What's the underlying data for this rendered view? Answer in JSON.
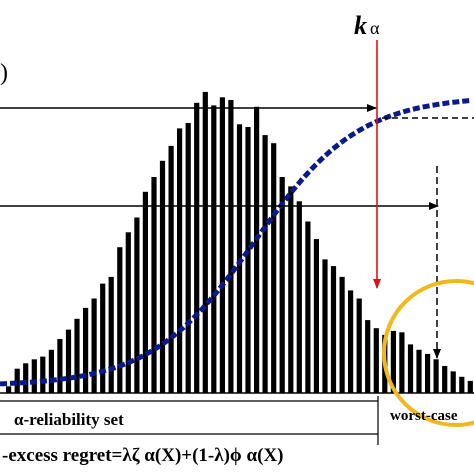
{
  "chart_data": {
    "type": "bar",
    "title": "",
    "xlabel": "",
    "ylabel": "",
    "marker_label_main": "k",
    "marker_label_sub": "α",
    "left_axis_fragment": ")",
    "bottom_labels": {
      "reliability_set": "α-reliability set",
      "worst_case": "worst-case",
      "formula": "-excess regret=λζ α(X)+(1-λ)ϕ α(X)"
    },
    "histogram_values": [
      5,
      18,
      22,
      25,
      27,
      32,
      40,
      47,
      55,
      63,
      70,
      81,
      86,
      108,
      119,
      130,
      149,
      160,
      172,
      183,
      196,
      200,
      215,
      223,
      213,
      219,
      217,
      199,
      197,
      212,
      191,
      185,
      160,
      153,
      142,
      127,
      114,
      99,
      94,
      86,
      76,
      70,
      54,
      48,
      43,
      46,
      45,
      36,
      32,
      29,
      25,
      20,
      16,
      12,
      9
    ],
    "histogram_highlighted_from_index": 47,
    "cdf_curve": "dashed, dark blue, increasing",
    "colors": {
      "bars": "#000000",
      "cdf_curve": "#0a1a8c",
      "marker_arrow": "#e0101a",
      "circle": "#f0b81c"
    }
  }
}
